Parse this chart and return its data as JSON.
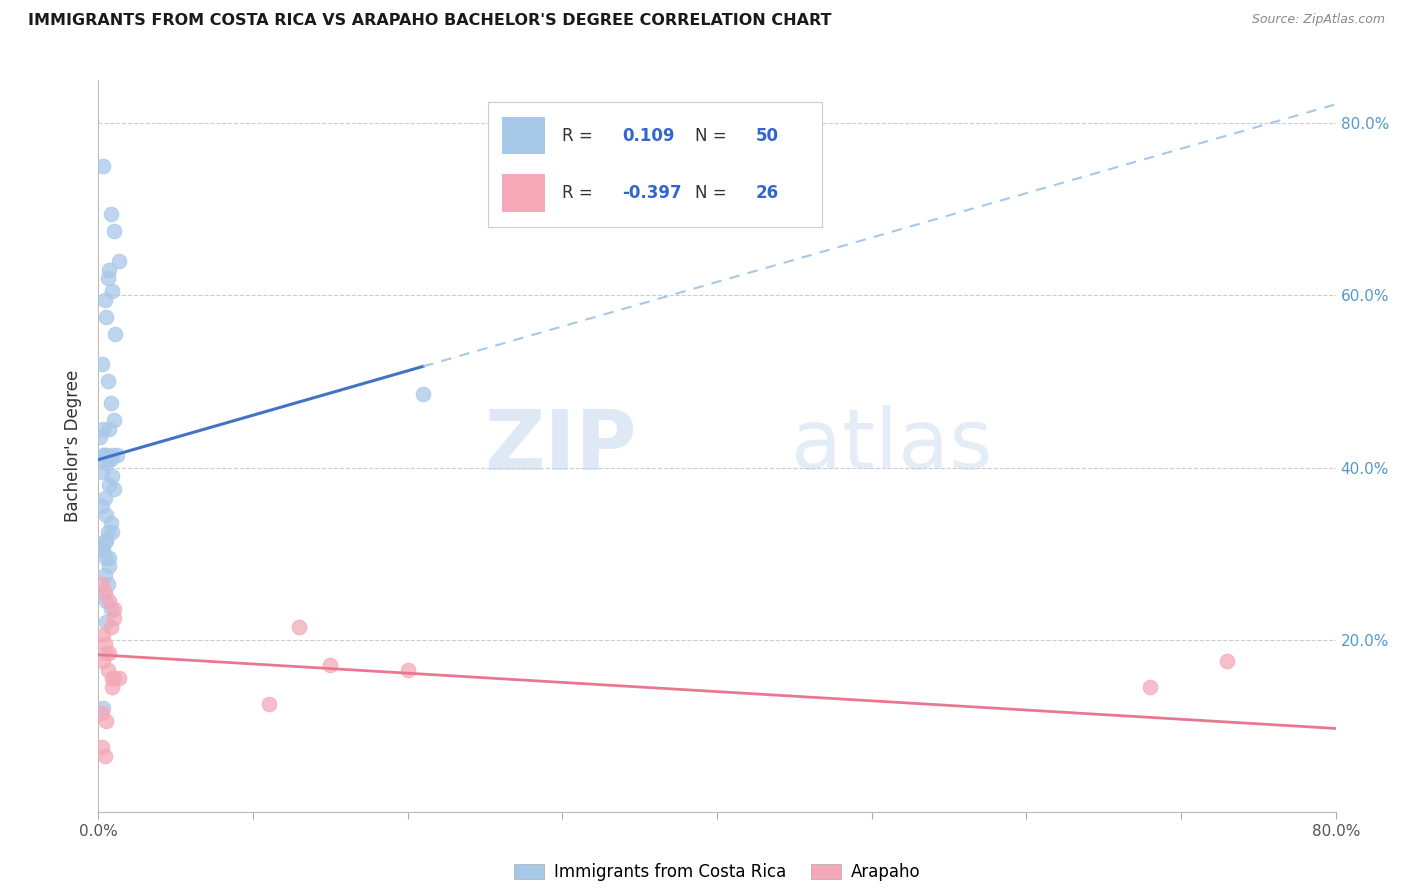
{
  "title": "IMMIGRANTS FROM COSTA RICA VS ARAPAHO BACHELOR'S DEGREE CORRELATION CHART",
  "source": "Source: ZipAtlas.com",
  "ylabel": "Bachelor's Degree",
  "xlim": [
    0.0,
    0.8
  ],
  "ylim": [
    0.0,
    0.85
  ],
  "blue_R": 0.109,
  "blue_N": 50,
  "pink_R": -0.397,
  "pink_N": 26,
  "blue_color": "#a8c8e8",
  "pink_color": "#f4a8b8",
  "blue_line_color": "#4472c4",
  "pink_line_color": "#e87890",
  "blue_dash_color": "#a8c8e8",
  "watermark_zip": "ZIP",
  "watermark_atlas": "atlas",
  "blue_scatter_x": [
    0.003,
    0.008,
    0.01,
    0.013,
    0.006,
    0.009,
    0.004,
    0.007,
    0.005,
    0.011,
    0.002,
    0.006,
    0.008,
    0.01,
    0.003,
    0.001,
    0.007,
    0.012,
    0.005,
    0.009,
    0.004,
    0.003,
    0.006,
    0.008,
    0.005,
    0.002,
    0.009,
    0.007,
    0.01,
    0.004,
    0.002,
    0.005,
    0.008,
    0.006,
    0.004,
    0.003,
    0.007,
    0.009,
    0.005,
    0.002,
    0.005,
    0.007,
    0.004,
    0.006,
    0.003,
    0.21,
    0.005,
    0.008,
    0.003,
    0.005
  ],
  "blue_scatter_y": [
    0.75,
    0.695,
    0.675,
    0.64,
    0.62,
    0.605,
    0.595,
    0.63,
    0.575,
    0.555,
    0.52,
    0.5,
    0.475,
    0.455,
    0.445,
    0.435,
    0.445,
    0.415,
    0.415,
    0.415,
    0.415,
    0.415,
    0.41,
    0.41,
    0.405,
    0.395,
    0.39,
    0.38,
    0.375,
    0.365,
    0.355,
    0.345,
    0.335,
    0.325,
    0.315,
    0.305,
    0.295,
    0.325,
    0.315,
    0.305,
    0.295,
    0.285,
    0.275,
    0.265,
    0.255,
    0.485,
    0.245,
    0.235,
    0.12,
    0.22
  ],
  "pink_scatter_x": [
    0.002,
    0.004,
    0.007,
    0.01,
    0.008,
    0.003,
    0.005,
    0.003,
    0.006,
    0.009,
    0.01,
    0.13,
    0.013,
    0.2,
    0.68,
    0.73,
    0.004,
    0.007,
    0.01,
    0.009,
    0.002,
    0.005,
    0.15,
    0.11,
    0.002,
    0.004
  ],
  "pink_scatter_y": [
    0.265,
    0.255,
    0.245,
    0.235,
    0.215,
    0.205,
    0.185,
    0.175,
    0.165,
    0.155,
    0.225,
    0.215,
    0.155,
    0.165,
    0.145,
    0.175,
    0.195,
    0.185,
    0.155,
    0.145,
    0.115,
    0.105,
    0.17,
    0.125,
    0.075,
    0.065
  ]
}
